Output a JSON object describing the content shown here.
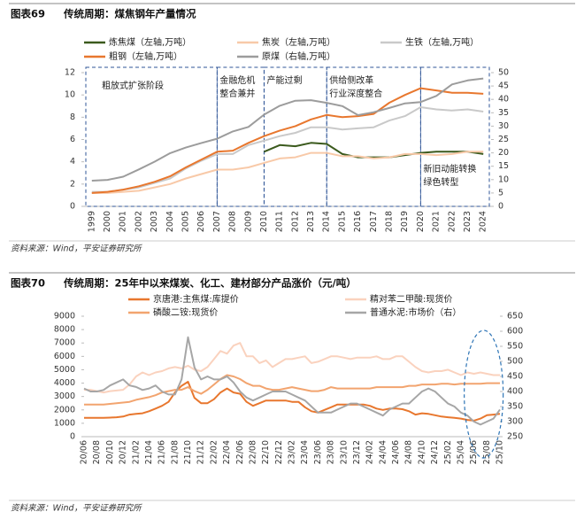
{
  "chart_data": [
    {
      "type": "line",
      "figure": "图表69",
      "title": "传统周期：煤焦钢年产量情况",
      "source": "资料来源：Wind，平安证券研究所",
      "categories": [
        "1999",
        "2000",
        "2001",
        "2002",
        "2003",
        "2004",
        "2005",
        "2006",
        "2007",
        "2008",
        "2009",
        "2010",
        "2011",
        "2012",
        "2013",
        "2014",
        "2015",
        "2016",
        "2017",
        "2018",
        "2019",
        "2020",
        "2021",
        "2022",
        "2023",
        "2024"
      ],
      "ylim": [
        0,
        12
      ],
      "yticks": [
        0,
        2,
        4,
        6,
        8,
        10,
        12
      ],
      "y2lim": [
        0,
        50
      ],
      "y2ticks": [
        0,
        5,
        10,
        15,
        20,
        25,
        30,
        35,
        40,
        45,
        50
      ],
      "series": [
        {
          "name": "炼焦煤（左轴,万吨）",
          "color": "#3b5a1d",
          "values": [
            null,
            null,
            null,
            null,
            null,
            null,
            null,
            null,
            null,
            null,
            null,
            4.9,
            5.5,
            5.4,
            5.7,
            5.6,
            4.7,
            4.4,
            4.4,
            4.4,
            4.6,
            4.8,
            4.9,
            4.9,
            4.9,
            4.7
          ]
        },
        {
          "name": "焦炭（左轴,万吨）",
          "color": "#f8c9a8",
          "values": [
            1.2,
            1.2,
            1.3,
            1.4,
            1.7,
            2.0,
            2.5,
            2.9,
            3.3,
            3.3,
            3.5,
            3.9,
            4.3,
            4.4,
            4.8,
            4.8,
            4.5,
            4.5,
            4.3,
            4.4,
            4.7,
            4.7,
            4.6,
            4.7,
            4.9,
            4.9
          ]
        },
        {
          "name": "生铁（左轴,万吨）",
          "color": "#c9c9c9",
          "values": [
            1.3,
            1.3,
            1.5,
            1.7,
            2.1,
            2.5,
            3.4,
            4.1,
            4.7,
            4.7,
            5.5,
            5.9,
            6.3,
            6.6,
            7.1,
            7.1,
            6.9,
            7.0,
            7.1,
            7.7,
            8.1,
            8.9,
            8.7,
            8.6,
            8.7,
            8.5
          ]
        },
        {
          "name": "粗钢（左轴,万吨）",
          "color": "#e8772e",
          "values": [
            1.2,
            1.3,
            1.5,
            1.8,
            2.2,
            2.7,
            3.5,
            4.2,
            4.9,
            5.0,
            5.7,
            6.3,
            6.8,
            7.2,
            7.8,
            8.2,
            8.0,
            8.1,
            8.3,
            9.3,
            10.0,
            10.6,
            10.4,
            10.2,
            10.2,
            10.1
          ]
        },
        {
          "name": "原煤（右轴,万吨）",
          "color": "#9c9c9c",
          "axis": "y2",
          "values": [
            9.6,
            9.9,
            11.1,
            13.8,
            16.7,
            19.9,
            22.0,
            23.7,
            25.3,
            28.0,
            29.7,
            34.3,
            37.6,
            39.5,
            39.7,
            38.7,
            37.5,
            34.1,
            35.2,
            36.8,
            38.5,
            39.0,
            41.3,
            45.6,
            47.1,
            47.8
          ]
        }
      ],
      "annotations": [
        {
          "text": [
            "粗放式扩张阶段"
          ],
          "from": "1999",
          "to": "2007"
        },
        {
          "text": [
            "金融危机",
            "整合兼并"
          ],
          "from": "2007",
          "to": "2010"
        },
        {
          "text": [
            "产能过剩"
          ],
          "from": "2010",
          "to": "2014"
        },
        {
          "text": [
            "供给侧改革",
            "行业深度整合"
          ],
          "from": "2014",
          "to": "2020"
        },
        {
          "text": [
            "新旧动能转换",
            "绿色转型"
          ],
          "from": "2020",
          "to": "2024"
        }
      ]
    },
    {
      "type": "line",
      "figure": "图表70",
      "title": "传统周期：25年中以来煤炭、化工、建材部分产品涨价（元/吨）",
      "source": "资料来源：Wind，平安证券研究所",
      "categories": [
        "20/06",
        null,
        "20/08",
        null,
        "20/10",
        null,
        "20/12",
        null,
        "21/02",
        null,
        "21/04",
        null,
        "21/06",
        null,
        "21/08",
        null,
        "21/10",
        null,
        "21/12",
        null,
        "22/02",
        null,
        "22/04",
        null,
        "22/06",
        null,
        "22/08",
        null,
        "22/10",
        null,
        "22/12",
        null,
        "23/02",
        null,
        "23/04",
        null,
        "23/06",
        null,
        "23/08",
        null,
        "23/10",
        null,
        "23/12",
        null,
        "24/02",
        null,
        "24/04",
        null,
        "24/06",
        null,
        "24/08",
        null,
        "24/10",
        null,
        "24/12",
        null,
        "25/02",
        null,
        "25/04",
        null,
        "25/06",
        null,
        "25/08",
        null,
        "25/10"
      ],
      "ylim": [
        0,
        9000
      ],
      "yticks": [
        0,
        1000,
        2000,
        3000,
        4000,
        5000,
        6000,
        7000,
        8000,
        9000
      ],
      "y2lim": [
        250,
        650
      ],
      "y2ticks": [
        250,
        300,
        350,
        400,
        450,
        500,
        550,
        600,
        650
      ],
      "series": [
        {
          "name": "京唐港:主焦煤:库提价",
          "color": "#e8772e",
          "values": [
            1400,
            1400,
            1400,
            1400,
            1420,
            1450,
            1500,
            1650,
            1700,
            1750,
            1900,
            2100,
            2300,
            2600,
            3300,
            3800,
            4100,
            2900,
            2500,
            2500,
            2800,
            3300,
            3600,
            3300,
            3200,
            2600,
            2300,
            2500,
            2700,
            2700,
            2700,
            2700,
            2600,
            2600,
            2200,
            1900,
            1800,
            2000,
            2200,
            2400,
            2400,
            2400,
            2400,
            2400,
            2300,
            2100,
            2000,
            2100,
            2100,
            2050,
            1900,
            1650,
            1750,
            1700,
            1600,
            1500,
            1450,
            1400,
            1350,
            1250,
            1200,
            1350,
            1600,
            1650,
            1700
          ]
        },
        {
          "name": "精对苯二甲酸:现货价",
          "color": "#fad2be",
          "values": [
            3500,
            3500,
            3400,
            3300,
            3400,
            3450,
            3500,
            3900,
            4500,
            4800,
            4600,
            4800,
            4900,
            5100,
            5200,
            5100,
            5300,
            5000,
            4900,
            5200,
            5800,
            6400,
            6200,
            6800,
            7000,
            6000,
            6000,
            5500,
            5700,
            5200,
            5500,
            5800,
            5800,
            5900,
            6000,
            5500,
            5600,
            5800,
            6000,
            6000,
            5900,
            5800,
            5900,
            5900,
            5900,
            6000,
            5800,
            5800,
            6000,
            6000,
            5600,
            5200,
            4900,
            4800,
            4900,
            4900,
            5000,
            4800,
            4600,
            4800,
            4700,
            4800,
            4700,
            4600,
            4600
          ]
        },
        {
          "name": "磷酸二铵:现货价",
          "color": "#f2a46f",
          "values": [
            2400,
            2400,
            2400,
            2400,
            2450,
            2500,
            2550,
            2600,
            2750,
            2850,
            2950,
            3100,
            3300,
            3400,
            3500,
            3500,
            3700,
            3400,
            3200,
            3500,
            3900,
            4300,
            4600,
            4500,
            4300,
            4000,
            3800,
            3800,
            3600,
            3500,
            3500,
            3600,
            3700,
            3600,
            3500,
            3400,
            3400,
            3500,
            3700,
            3600,
            3600,
            3600,
            3600,
            3600,
            3600,
            3700,
            3700,
            3700,
            3700,
            3700,
            3800,
            3800,
            3900,
            3900,
            3900,
            3950,
            3950,
            3900,
            3950,
            3950,
            3950,
            3950,
            4000,
            4000,
            4000
          ]
        },
        {
          "name": "普通水泥:市场价（右）",
          "color": "#a6a6a6",
          "axis": "y2",
          "values": [
            410,
            400,
            400,
            405,
            420,
            430,
            440,
            420,
            415,
            405,
            410,
            420,
            400,
            390,
            390,
            440,
            580,
            480,
            440,
            450,
            440,
            440,
            450,
            430,
            400,
            380,
            370,
            380,
            390,
            400,
            400,
            400,
            390,
            380,
            370,
            350,
            330,
            330,
            330,
            340,
            350,
            360,
            360,
            350,
            340,
            330,
            320,
            340,
            350,
            360,
            360,
            380,
            400,
            410,
            400,
            380,
            360,
            350,
            330,
            320,
            300,
            290,
            300,
            310,
            340
          ]
        }
      ]
    }
  ]
}
